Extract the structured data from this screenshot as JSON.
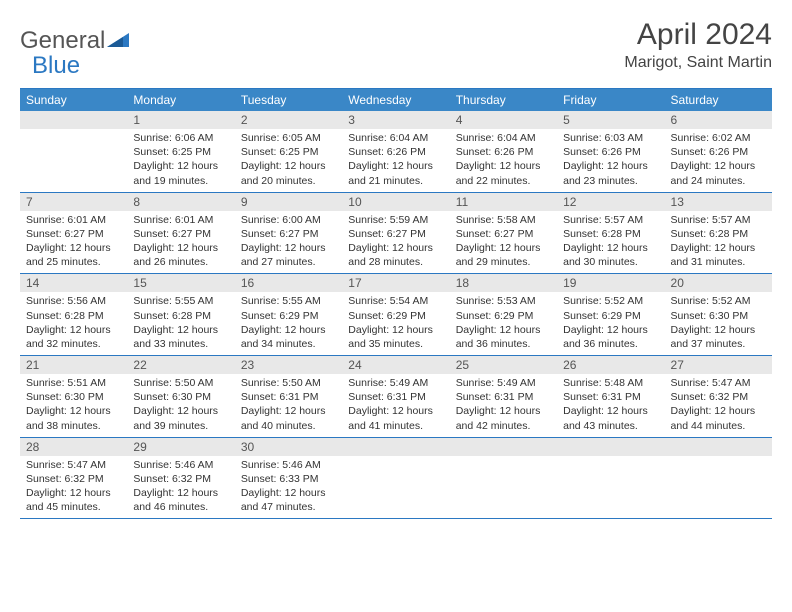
{
  "brand": {
    "part1": "General",
    "part2": "Blue"
  },
  "title": "April 2024",
  "location": "Marigot, Saint Martin",
  "colors": {
    "header_bg": "#3a87c7",
    "border": "#2b78c2",
    "daynum_bg": "#e8e8e8",
    "text": "#333333",
    "title_text": "#444444"
  },
  "day_names": [
    "Sunday",
    "Monday",
    "Tuesday",
    "Wednesday",
    "Thursday",
    "Friday",
    "Saturday"
  ],
  "weeks": [
    [
      {
        "day": "",
        "sunrise": "",
        "sunset": "",
        "daylight": ""
      },
      {
        "day": "1",
        "sunrise": "Sunrise: 6:06 AM",
        "sunset": "Sunset: 6:25 PM",
        "daylight": "Daylight: 12 hours and 19 minutes."
      },
      {
        "day": "2",
        "sunrise": "Sunrise: 6:05 AM",
        "sunset": "Sunset: 6:25 PM",
        "daylight": "Daylight: 12 hours and 20 minutes."
      },
      {
        "day": "3",
        "sunrise": "Sunrise: 6:04 AM",
        "sunset": "Sunset: 6:26 PM",
        "daylight": "Daylight: 12 hours and 21 minutes."
      },
      {
        "day": "4",
        "sunrise": "Sunrise: 6:04 AM",
        "sunset": "Sunset: 6:26 PM",
        "daylight": "Daylight: 12 hours and 22 minutes."
      },
      {
        "day": "5",
        "sunrise": "Sunrise: 6:03 AM",
        "sunset": "Sunset: 6:26 PM",
        "daylight": "Daylight: 12 hours and 23 minutes."
      },
      {
        "day": "6",
        "sunrise": "Sunrise: 6:02 AM",
        "sunset": "Sunset: 6:26 PM",
        "daylight": "Daylight: 12 hours and 24 minutes."
      }
    ],
    [
      {
        "day": "7",
        "sunrise": "Sunrise: 6:01 AM",
        "sunset": "Sunset: 6:27 PM",
        "daylight": "Daylight: 12 hours and 25 minutes."
      },
      {
        "day": "8",
        "sunrise": "Sunrise: 6:01 AM",
        "sunset": "Sunset: 6:27 PM",
        "daylight": "Daylight: 12 hours and 26 minutes."
      },
      {
        "day": "9",
        "sunrise": "Sunrise: 6:00 AM",
        "sunset": "Sunset: 6:27 PM",
        "daylight": "Daylight: 12 hours and 27 minutes."
      },
      {
        "day": "10",
        "sunrise": "Sunrise: 5:59 AM",
        "sunset": "Sunset: 6:27 PM",
        "daylight": "Daylight: 12 hours and 28 minutes."
      },
      {
        "day": "11",
        "sunrise": "Sunrise: 5:58 AM",
        "sunset": "Sunset: 6:27 PM",
        "daylight": "Daylight: 12 hours and 29 minutes."
      },
      {
        "day": "12",
        "sunrise": "Sunrise: 5:57 AM",
        "sunset": "Sunset: 6:28 PM",
        "daylight": "Daylight: 12 hours and 30 minutes."
      },
      {
        "day": "13",
        "sunrise": "Sunrise: 5:57 AM",
        "sunset": "Sunset: 6:28 PM",
        "daylight": "Daylight: 12 hours and 31 minutes."
      }
    ],
    [
      {
        "day": "14",
        "sunrise": "Sunrise: 5:56 AM",
        "sunset": "Sunset: 6:28 PM",
        "daylight": "Daylight: 12 hours and 32 minutes."
      },
      {
        "day": "15",
        "sunrise": "Sunrise: 5:55 AM",
        "sunset": "Sunset: 6:28 PM",
        "daylight": "Daylight: 12 hours and 33 minutes."
      },
      {
        "day": "16",
        "sunrise": "Sunrise: 5:55 AM",
        "sunset": "Sunset: 6:29 PM",
        "daylight": "Daylight: 12 hours and 34 minutes."
      },
      {
        "day": "17",
        "sunrise": "Sunrise: 5:54 AM",
        "sunset": "Sunset: 6:29 PM",
        "daylight": "Daylight: 12 hours and 35 minutes."
      },
      {
        "day": "18",
        "sunrise": "Sunrise: 5:53 AM",
        "sunset": "Sunset: 6:29 PM",
        "daylight": "Daylight: 12 hours and 36 minutes."
      },
      {
        "day": "19",
        "sunrise": "Sunrise: 5:52 AM",
        "sunset": "Sunset: 6:29 PM",
        "daylight": "Daylight: 12 hours and 36 minutes."
      },
      {
        "day": "20",
        "sunrise": "Sunrise: 5:52 AM",
        "sunset": "Sunset: 6:30 PM",
        "daylight": "Daylight: 12 hours and 37 minutes."
      }
    ],
    [
      {
        "day": "21",
        "sunrise": "Sunrise: 5:51 AM",
        "sunset": "Sunset: 6:30 PM",
        "daylight": "Daylight: 12 hours and 38 minutes."
      },
      {
        "day": "22",
        "sunrise": "Sunrise: 5:50 AM",
        "sunset": "Sunset: 6:30 PM",
        "daylight": "Daylight: 12 hours and 39 minutes."
      },
      {
        "day": "23",
        "sunrise": "Sunrise: 5:50 AM",
        "sunset": "Sunset: 6:31 PM",
        "daylight": "Daylight: 12 hours and 40 minutes."
      },
      {
        "day": "24",
        "sunrise": "Sunrise: 5:49 AM",
        "sunset": "Sunset: 6:31 PM",
        "daylight": "Daylight: 12 hours and 41 minutes."
      },
      {
        "day": "25",
        "sunrise": "Sunrise: 5:49 AM",
        "sunset": "Sunset: 6:31 PM",
        "daylight": "Daylight: 12 hours and 42 minutes."
      },
      {
        "day": "26",
        "sunrise": "Sunrise: 5:48 AM",
        "sunset": "Sunset: 6:31 PM",
        "daylight": "Daylight: 12 hours and 43 minutes."
      },
      {
        "day": "27",
        "sunrise": "Sunrise: 5:47 AM",
        "sunset": "Sunset: 6:32 PM",
        "daylight": "Daylight: 12 hours and 44 minutes."
      }
    ],
    [
      {
        "day": "28",
        "sunrise": "Sunrise: 5:47 AM",
        "sunset": "Sunset: 6:32 PM",
        "daylight": "Daylight: 12 hours and 45 minutes."
      },
      {
        "day": "29",
        "sunrise": "Sunrise: 5:46 AM",
        "sunset": "Sunset: 6:32 PM",
        "daylight": "Daylight: 12 hours and 46 minutes."
      },
      {
        "day": "30",
        "sunrise": "Sunrise: 5:46 AM",
        "sunset": "Sunset: 6:33 PM",
        "daylight": "Daylight: 12 hours and 47 minutes."
      },
      {
        "day": "",
        "sunrise": "",
        "sunset": "",
        "daylight": ""
      },
      {
        "day": "",
        "sunrise": "",
        "sunset": "",
        "daylight": ""
      },
      {
        "day": "",
        "sunrise": "",
        "sunset": "",
        "daylight": ""
      },
      {
        "day": "",
        "sunrise": "",
        "sunset": "",
        "daylight": ""
      }
    ]
  ]
}
